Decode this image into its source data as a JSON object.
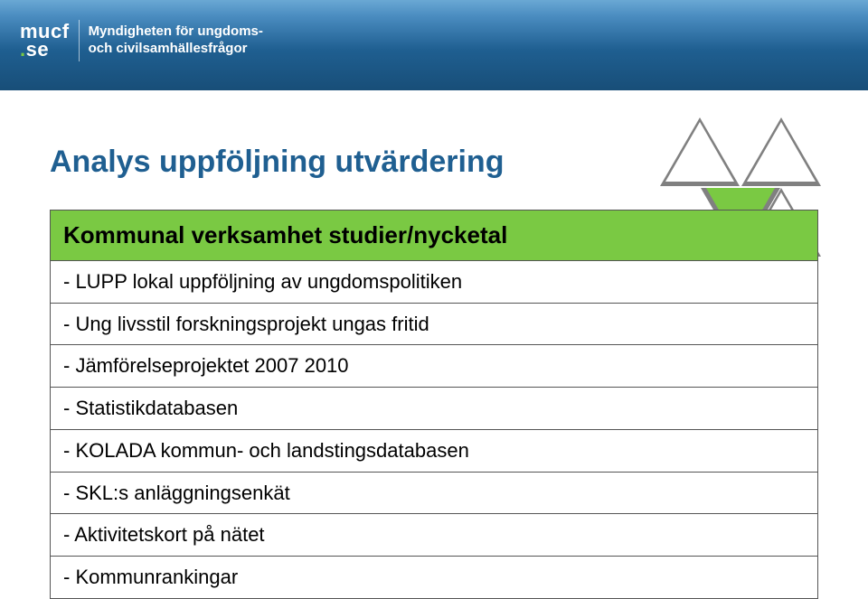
{
  "brand": {
    "logo_top": "mucf",
    "logo_bottom": ".se",
    "tagline_line1": "Myndigheten för ungdoms-",
    "tagline_line2": "och civilsamhällesfrågor"
  },
  "colors": {
    "banner_gradient_top": "#6aa8d4",
    "banner_gradient_bottom": "#184e78",
    "title_color": "#1f5f91",
    "accent_green": "#7ac943",
    "triangle_outline": "#808080",
    "table_border": "#555555",
    "text_color": "#000000"
  },
  "title": "Analys uppföljning utvärdering",
  "triangles": {
    "type": "infographic",
    "arrangement": "three upright outlined triangles with one inverted green-filled triangle in center",
    "outline_color": "#808080",
    "fill_colors": [
      "#ffffff",
      "#ffffff",
      "#7ac943",
      "#ffffff"
    ]
  },
  "table": {
    "header": "Kommunal verksamhet studier/nycketal",
    "rows": [
      "- LUPP lokal uppföljning av ungdomspolitiken",
      "- Ung livsstil forskningsprojekt ungas fritid",
      "- Jämförelseprojektet 2007 2010",
      "- Statistikdatabasen",
      "- KOLADA kommun- och landstingsdatabasen",
      "- SKL:s anläggningsenkät",
      "- Aktivitetskort på nätet",
      "- Kommunrankingar"
    ],
    "row_fontsize": 22,
    "header_fontsize": 26,
    "header_bg": "#7ac943"
  }
}
